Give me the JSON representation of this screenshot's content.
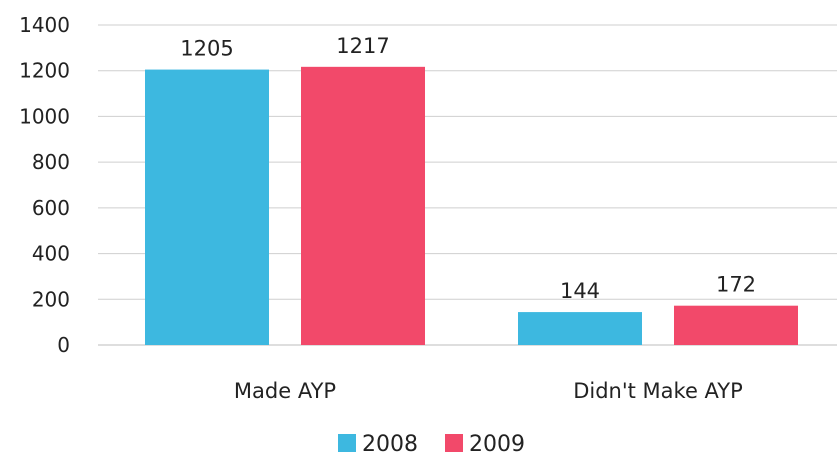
{
  "chart_data": {
    "type": "bar",
    "categories": [
      "Made AYP",
      "Didn't Make AYP"
    ],
    "series": [
      {
        "name": "2008",
        "values": [
          1205,
          144
        ],
        "color": "#3db8e0"
      },
      {
        "name": "2009",
        "values": [
          1217,
          172
        ],
        "color": "#f2496a"
      }
    ],
    "ylim": [
      0,
      1400
    ],
    "yticks": [
      0,
      200,
      400,
      600,
      800,
      1000,
      1200,
      1400
    ],
    "data_labels": [
      "1205",
      "144",
      "1217",
      "172"
    ],
    "grid": true,
    "legend_position": "bottom-center"
  }
}
